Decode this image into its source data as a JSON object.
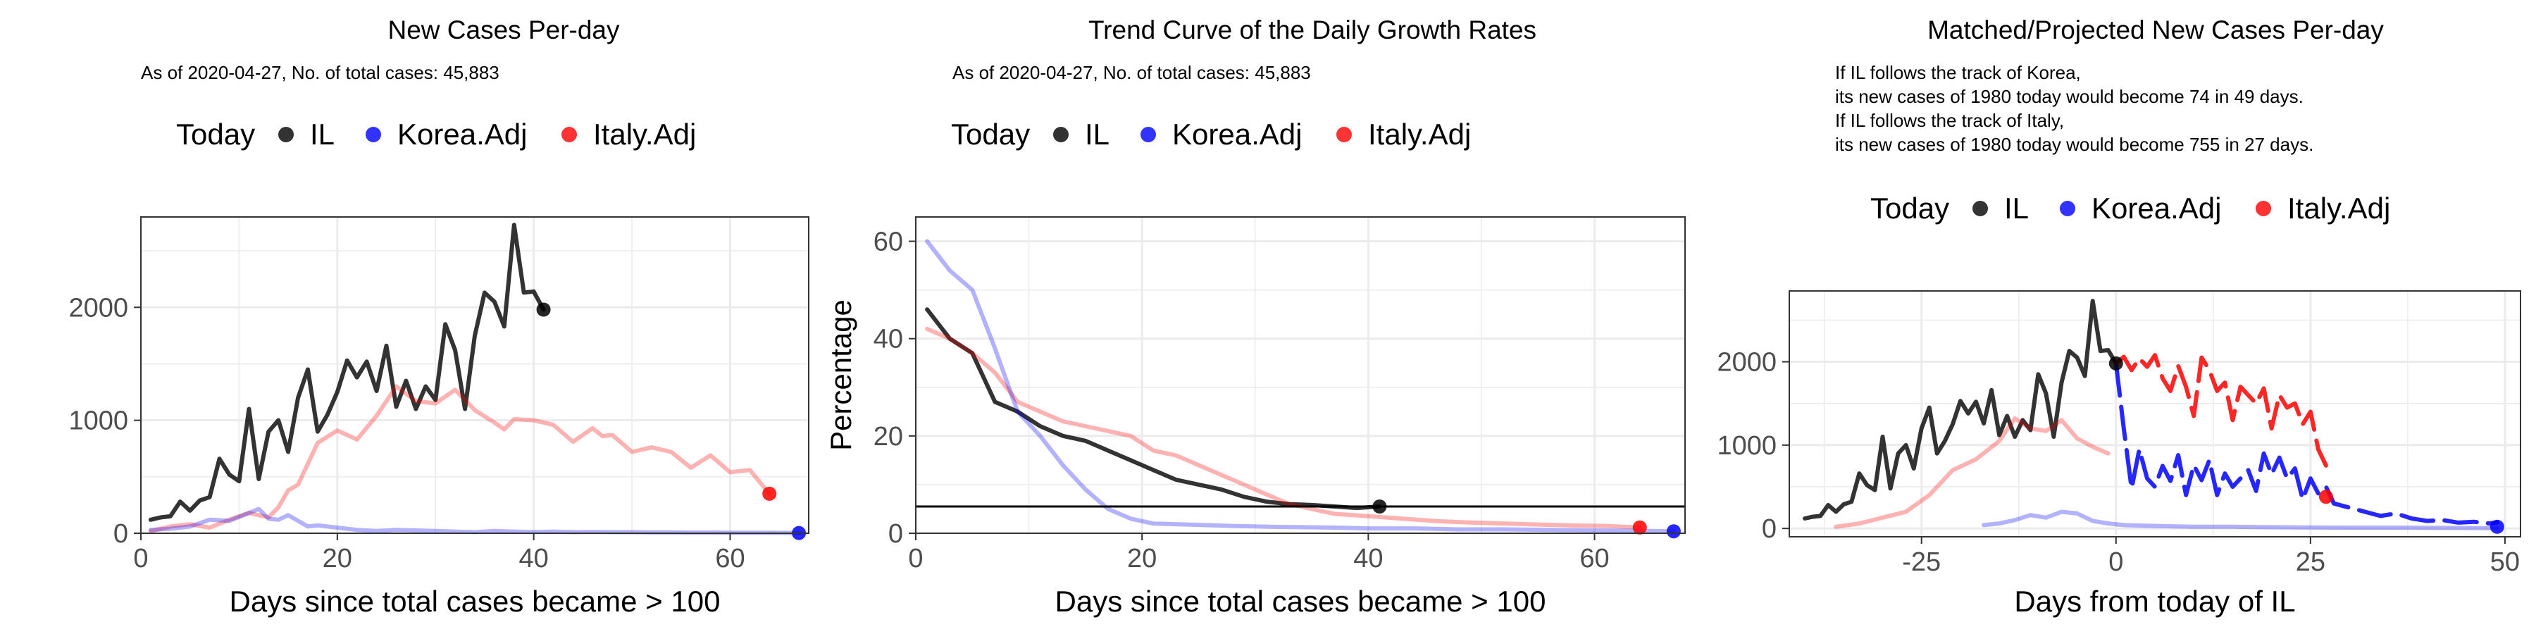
{
  "colors": {
    "il": "#000000",
    "korea": "#0000ff",
    "italy": "#ff0000",
    "grid": "#ebebeb",
    "panel_border": "#333333"
  },
  "legend": {
    "title": "Today",
    "il": "IL",
    "korea": "Korea.Adj",
    "italy": "Italy.Adj"
  },
  "chart_data": [
    {
      "type": "line",
      "title": "New Cases Per-day",
      "subtitle": "As of 2020-04-27, No. of total cases: 45,883",
      "xlabel": "Days since total cases became > 100",
      "ylabel": "",
      "xlim": [
        0,
        68
      ],
      "ylim": [
        0,
        2800
      ],
      "xticks": [
        0,
        20,
        40,
        60
      ],
      "yticks": [
        0,
        1000,
        2000
      ],
      "grid": true,
      "legend_position": "top",
      "series": [
        {
          "name": "IL",
          "color": "#000000",
          "alpha": 0.8,
          "x": [
            1,
            2,
            3,
            4,
            5,
            6,
            7,
            8,
            9,
            10,
            11,
            12,
            13,
            14,
            15,
            16,
            17,
            18,
            19,
            20,
            21,
            22,
            23,
            24,
            25,
            26,
            27,
            28,
            29,
            30,
            31,
            32,
            33,
            34,
            35,
            36,
            37,
            38,
            39,
            40,
            41
          ],
          "values": [
            120,
            140,
            150,
            280,
            200,
            290,
            320,
            660,
            520,
            460,
            1100,
            480,
            900,
            1000,
            720,
            1200,
            1450,
            900,
            1050,
            1250,
            1530,
            1380,
            1520,
            1260,
            1660,
            1120,
            1350,
            1100,
            1300,
            1180,
            1850,
            1620,
            1100,
            1750,
            2130,
            2050,
            1830,
            2730,
            2130,
            2140,
            1980
          ]
        },
        {
          "name": "Italy.Adj",
          "color": "#ff0000",
          "alpha": 0.3,
          "x": [
            1,
            3,
            5,
            7,
            9,
            11,
            13,
            14,
            15,
            16,
            18,
            20,
            22,
            24,
            26,
            28,
            30,
            32,
            34,
            36,
            37,
            38,
            40,
            42,
            44,
            46,
            47,
            48,
            50,
            52,
            54,
            56,
            58,
            60,
            62,
            64
          ],
          "values": [
            20,
            60,
            80,
            50,
            120,
            180,
            140,
            230,
            380,
            430,
            800,
            910,
            830,
            1040,
            1300,
            1170,
            1150,
            1270,
            1090,
            980,
            920,
            1010,
            1000,
            960,
            810,
            930,
            860,
            870,
            720,
            760,
            720,
            580,
            690,
            540,
            560,
            350
          ]
        },
        {
          "name": "Korea.Adj",
          "color": "#0000ff",
          "alpha": 0.3,
          "x": [
            1,
            3,
            5,
            7,
            9,
            11,
            12,
            13,
            14,
            15,
            16,
            17,
            18,
            20,
            22,
            24,
            26,
            28,
            30,
            32,
            34,
            36,
            38,
            40,
            42,
            44,
            46,
            48,
            50,
            52,
            54,
            56,
            58,
            60,
            62,
            64,
            66,
            67
          ],
          "values": [
            30,
            40,
            60,
            120,
            110,
            180,
            215,
            130,
            120,
            160,
            110,
            60,
            70,
            50,
            30,
            20,
            30,
            25,
            20,
            15,
            10,
            20,
            15,
            10,
            15,
            10,
            12,
            10,
            10,
            8,
            8,
            6,
            6,
            5,
            5,
            5,
            3,
            2
          ]
        }
      ],
      "today_points": [
        {
          "series": "IL",
          "x": 41,
          "y": 1980
        },
        {
          "series": "Italy.Adj",
          "x": 64,
          "y": 350
        },
        {
          "series": "Korea.Adj",
          "x": 67,
          "y": 2
        }
      ]
    },
    {
      "type": "line",
      "title": "Trend Curve of the Daily Growth Rates",
      "subtitle": "As of 2020-04-27, No. of total cases: 45,883",
      "xlabel": "Days since total cases became > 100",
      "ylabel": "Percentage",
      "xlim": [
        0,
        68
      ],
      "ylim": [
        0,
        65
      ],
      "xticks": [
        0,
        20,
        40,
        60
      ],
      "yticks": [
        0,
        20,
        40,
        60
      ],
      "grid": true,
      "legend_position": "top",
      "hline": 5.5,
      "series": [
        {
          "name": "IL",
          "color": "#000000",
          "alpha": 0.8,
          "x": [
            1,
            3,
            5,
            7,
            9,
            11,
            13,
            15,
            17,
            19,
            21,
            23,
            25,
            27,
            29,
            31,
            33,
            35,
            37,
            39,
            41
          ],
          "values": [
            46,
            40,
            37,
            27,
            25,
            22,
            20,
            19,
            17,
            15,
            13,
            11,
            10,
            9,
            7.5,
            6.5,
            6,
            5.8,
            5.5,
            5.2,
            5.5
          ]
        },
        {
          "name": "Italy.Adj",
          "color": "#ff0000",
          "alpha": 0.3,
          "x": [
            1,
            3,
            5,
            7,
            9,
            11,
            13,
            15,
            17,
            19,
            21,
            23,
            25,
            27,
            29,
            31,
            33,
            35,
            37,
            40,
            43,
            46,
            49,
            52,
            55,
            58,
            61,
            64
          ],
          "values": [
            42,
            40,
            37,
            33,
            27,
            25,
            23,
            22,
            21,
            20,
            17,
            16,
            14,
            12,
            10,
            8,
            6,
            5,
            4,
            3.5,
            3,
            2.5,
            2.2,
            2,
            1.8,
            1.6,
            1.5,
            1.2
          ]
        },
        {
          "name": "Korea.Adj",
          "color": "#0000ff",
          "alpha": 0.3,
          "x": [
            1,
            3,
            5,
            7,
            9,
            11,
            13,
            15,
            17,
            19,
            21,
            24,
            28,
            32,
            36,
            40,
            44,
            48,
            52,
            56,
            60,
            64,
            67
          ],
          "values": [
            60,
            54,
            50,
            38,
            25,
            20,
            14,
            9,
            5,
            3,
            2,
            1.8,
            1.5,
            1.3,
            1.2,
            1,
            1,
            0.8,
            0.8,
            0.7,
            0.6,
            0.5,
            0.4
          ]
        }
      ],
      "today_points": [
        {
          "series": "IL",
          "x": 41,
          "y": 5.5
        },
        {
          "series": "Italy.Adj",
          "x": 64,
          "y": 1.2
        },
        {
          "series": "Korea.Adj",
          "x": 67,
          "y": 0.4
        }
      ]
    },
    {
      "type": "line",
      "title": "Matched/Projected New Cases Per-day",
      "subtitle_lines": [
        "If IL follows the track of Korea,",
        "its new cases of 1980 today would become 74 in 49 days.",
        "If IL follows the track of Italy,",
        "its new cases of 1980 today would become 755 in 27 days."
      ],
      "xlabel": "Days from today of IL",
      "ylabel": "",
      "xlim": [
        -42,
        52
      ],
      "ylim": [
        -100,
        2850
      ],
      "xticks": [
        -25,
        0,
        25,
        50
      ],
      "yticks": [
        0,
        1000,
        2000
      ],
      "grid": true,
      "legend_position": "top",
      "series": [
        {
          "name": "IL",
          "color": "#000000",
          "alpha": 0.8,
          "x": [
            -40,
            -39,
            -38,
            -37,
            -36,
            -35,
            -34,
            -33,
            -32,
            -31,
            -30,
            -29,
            -28,
            -27,
            -26,
            -25,
            -24,
            -23,
            -22,
            -21,
            -20,
            -19,
            -18,
            -17,
            -16,
            -15,
            -14,
            -13,
            -12,
            -11,
            -10,
            -9,
            -8,
            -7,
            -6,
            -5,
            -4,
            -3,
            -2,
            -1,
            0
          ],
          "values": [
            120,
            140,
            150,
            280,
            200,
            290,
            320,
            660,
            520,
            460,
            1100,
            480,
            900,
            1000,
            720,
            1200,
            1450,
            900,
            1050,
            1250,
            1530,
            1380,
            1520,
            1260,
            1660,
            1120,
            1350,
            1100,
            1300,
            1180,
            1850,
            1620,
            1100,
            1750,
            2130,
            2050,
            1830,
            2730,
            2130,
            2140,
            1980
          ]
        },
        {
          "name": "Italy.Adj (matched)",
          "color": "#ff0000",
          "alpha": 0.3,
          "x": [
            -36,
            -33,
            -30,
            -27,
            -24,
            -21,
            -18,
            -15,
            -13,
            -11,
            -9,
            -7,
            -5,
            -3,
            -1
          ],
          "values": [
            20,
            60,
            130,
            200,
            400,
            700,
            830,
            1050,
            1320,
            1200,
            1170,
            1300,
            1080,
            980,
            900
          ]
        },
        {
          "name": "Korea.Adj (matched)",
          "color": "#0000ff",
          "alpha": 0.3,
          "x": [
            -17,
            -15,
            -13,
            -11,
            -9,
            -7,
            -5,
            -3,
            -1,
            1,
            5,
            10,
            15,
            20,
            25,
            30,
            35,
            40,
            45,
            49
          ],
          "values": [
            40,
            60,
            100,
            160,
            130,
            200,
            180,
            90,
            60,
            40,
            30,
            20,
            20,
            15,
            12,
            10,
            10,
            8,
            6,
            4
          ]
        },
        {
          "name": "Korea.Adj (projected)",
          "color": "#0000ff",
          "alpha": 0.85,
          "dashed": true,
          "x": [
            0,
            1,
            2,
            3,
            4,
            5,
            6,
            7,
            8,
            9,
            10,
            11,
            12,
            13,
            14,
            15,
            16,
            17,
            18,
            19,
            20,
            21,
            22,
            23,
            24,
            25,
            26,
            27,
            28,
            30,
            32,
            34,
            36,
            38,
            40,
            42,
            44,
            46,
            48,
            49
          ],
          "values": [
            1980,
            1200,
            480,
            950,
            600,
            500,
            750,
            570,
            880,
            400,
            760,
            580,
            820,
            400,
            660,
            500,
            600,
            700,
            450,
            900,
            650,
            850,
            600,
            720,
            350,
            600,
            420,
            500,
            300,
            250,
            200,
            150,
            180,
            120,
            90,
            100,
            70,
            80,
            60,
            74
          ]
        },
        {
          "name": "Italy.Adj (projected)",
          "color": "#ff0000",
          "alpha": 0.85,
          "dashed": true,
          "x": [
            0,
            1,
            2,
            3,
            4,
            5,
            6,
            7,
            8,
            9,
            10,
            11,
            12,
            13,
            14,
            15,
            16,
            17,
            18,
            19,
            20,
            21,
            22,
            23,
            24,
            25,
            26,
            27
          ],
          "values": [
            1980,
            2060,
            1900,
            2040,
            1940,
            2080,
            1800,
            1650,
            1950,
            1700,
            1350,
            2050,
            1900,
            1650,
            1750,
            1300,
            1700,
            1600,
            1500,
            1680,
            1200,
            1600,
            1450,
            1500,
            1250,
            1400,
            950,
            755
          ]
        }
      ],
      "today_points": [
        {
          "series": "IL",
          "x": 0,
          "y": 1980
        },
        {
          "series": "Italy.Adj",
          "x": 27,
          "y": 380
        },
        {
          "series": "Korea.Adj",
          "x": 49,
          "y": 20
        }
      ]
    }
  ]
}
